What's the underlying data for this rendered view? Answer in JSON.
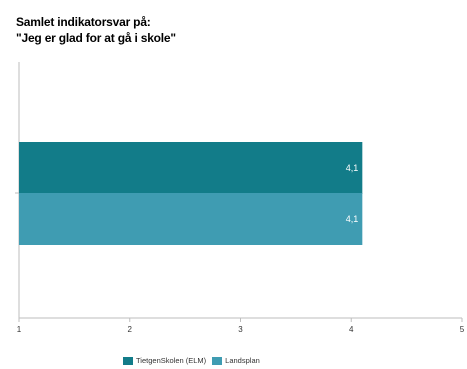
{
  "chart_data": {
    "type": "bar",
    "orientation": "horizontal",
    "title": "Samlet indikatorsvar på:",
    "subtitle": "\"Jeg er glad for at gå i skole\"",
    "xlim": [
      1,
      5
    ],
    "xticks": [
      "1",
      "2",
      "3",
      "4",
      "5"
    ],
    "series": [
      {
        "name": "TietgenSkolen (ELM)",
        "values": [
          4.1
        ],
        "label": "4,1",
        "color": "#127c89"
      },
      {
        "name": "Landsplan",
        "values": [
          4.1
        ],
        "label": "4,1",
        "color": "#3f9cb2"
      }
    ],
    "legend_position": "bottom"
  }
}
